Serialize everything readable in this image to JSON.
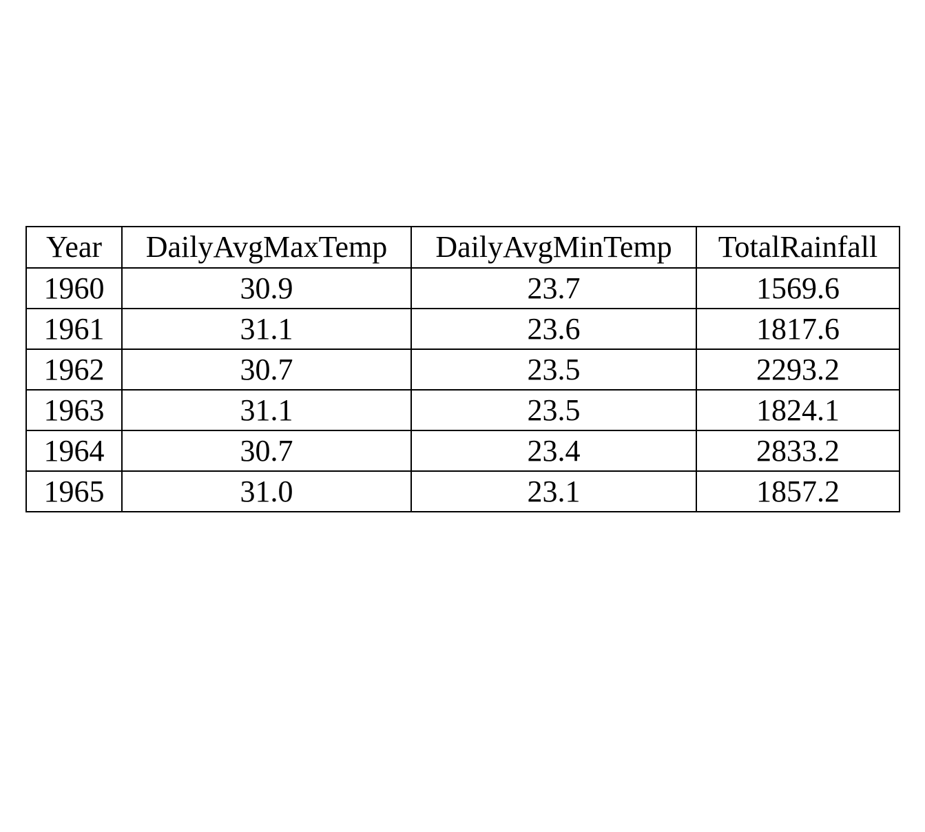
{
  "chart_data": {
    "type": "table",
    "columns": [
      "Year",
      "DailyAvgMaxTemp",
      "DailyAvgMinTemp",
      "TotalRainfall"
    ],
    "rows": [
      [
        "1960",
        "30.9",
        "23.7",
        "1569.6"
      ],
      [
        "1961",
        "31.1",
        "23.6",
        "1817.6"
      ],
      [
        "1962",
        "30.7",
        "23.5",
        "2293.2"
      ],
      [
        "1963",
        "31.1",
        "23.5",
        "1824.1"
      ],
      [
        "1964",
        "30.7",
        "23.4",
        "2833.2"
      ],
      [
        "1965",
        "31.0",
        "23.1",
        "1857.2"
      ]
    ]
  }
}
